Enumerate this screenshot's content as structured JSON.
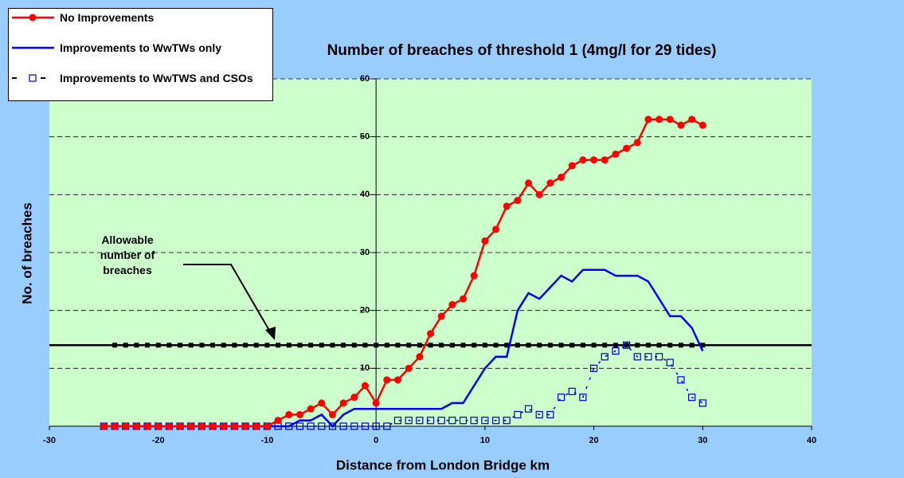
{
  "chart_data": {
    "type": "line",
    "title": "Number of breaches of threshold 1 (4mg/l for 29 tides)",
    "x_label": "Distance from London Bridge km",
    "y_label": "No. of breaches",
    "annotation": "Allowable number of breaches",
    "x": [
      -25,
      -24,
      -23,
      -22,
      -21,
      -20,
      -19,
      -18,
      -17,
      -16,
      -15,
      -14,
      -13,
      -12,
      -11,
      -10,
      -9,
      -8,
      -7,
      -6,
      -5,
      -4,
      -3,
      -2,
      -1,
      0,
      1,
      2,
      3,
      4,
      5,
      6,
      7,
      8,
      9,
      10,
      11,
      12,
      13,
      14,
      15,
      16,
      17,
      18,
      19,
      20,
      21,
      22,
      23,
      24,
      25,
      26,
      27,
      28,
      29,
      30
    ],
    "series": [
      {
        "name": "No Improvements",
        "color": "#ff0000",
        "marker": "circle",
        "dashed": false,
        "values": [
          0,
          0,
          0,
          0,
          0,
          0,
          0,
          0,
          0,
          0,
          0,
          0,
          0,
          0,
          0,
          0,
          1,
          2,
          2,
          3,
          4,
          2,
          4,
          5,
          7,
          4,
          8,
          8,
          10,
          12,
          16,
          19,
          21,
          22,
          26,
          32,
          34,
          38,
          39,
          42,
          40,
          42,
          43,
          45,
          46,
          46,
          46,
          47,
          48,
          49,
          53,
          53,
          53,
          52,
          53,
          52
        ]
      },
      {
        "name": "Improvements to WwTWs only",
        "color": "#0000ff",
        "marker": "none",
        "dashed": false,
        "values": [
          0,
          0,
          0,
          0,
          0,
          0,
          0,
          0,
          0,
          0,
          0,
          0,
          0,
          0,
          0,
          0,
          0,
          0,
          1,
          1,
          2,
          0,
          2,
          3,
          3,
          3,
          3,
          3,
          3,
          3,
          3,
          3,
          4,
          4,
          7,
          10,
          12,
          12,
          20,
          23,
          22,
          24,
          26,
          25,
          27,
          27,
          27,
          26,
          26,
          26,
          25,
          22,
          19,
          19,
          17,
          13
        ]
      },
      {
        "name": "Improvements to WwTWS and CSOs",
        "color": "#0000cc",
        "marker": "square",
        "dashed": true,
        "values": [
          0,
          0,
          0,
          0,
          0,
          0,
          0,
          0,
          0,
          0,
          0,
          0,
          0,
          0,
          0,
          0,
          0,
          0,
          0,
          0,
          0,
          0,
          0,
          0,
          0,
          0,
          0,
          1,
          1,
          1,
          1,
          1,
          1,
          1,
          1,
          1,
          1,
          1,
          2,
          3,
          2,
          2,
          5,
          6,
          5,
          10,
          12,
          13,
          14,
          12,
          12,
          12,
          11,
          8,
          5,
          4
        ]
      }
    ],
    "reference_line": {
      "value": 14,
      "color": "#000000"
    },
    "xlim": [
      -30,
      40
    ],
    "xticks": [
      -30,
      -20,
      -10,
      0,
      10,
      20,
      30,
      40
    ],
    "ylim": [
      0,
      60
    ],
    "yticks": [
      10,
      20,
      30,
      40,
      50,
      60
    ],
    "grid": true
  }
}
